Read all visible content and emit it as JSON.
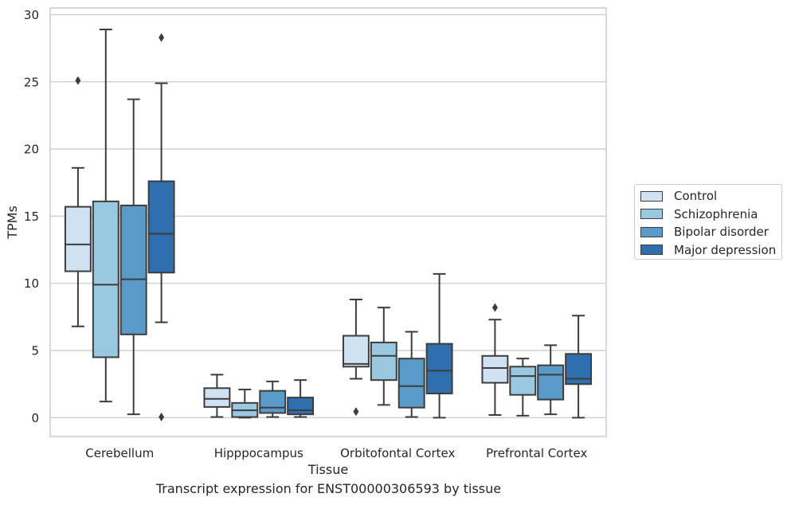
{
  "caption": "Transcript expression for ENST00000306593 by tissue",
  "chart_data": {
    "type": "box",
    "xlabel": "Tissue",
    "ylabel": "TPMs",
    "ylim": [
      -1.4,
      30.5
    ],
    "yticks": [
      0,
      5,
      10,
      15,
      20,
      25,
      30
    ],
    "grid": "horizontal",
    "legend_position": "right",
    "categories": [
      "Cerebellum",
      "Hipppocampus",
      "Orbitofontal Cortex",
      "Prefrontal Cortex"
    ],
    "series": [
      {
        "name": "Control",
        "color": "#d0e1f2",
        "boxes": [
          {
            "whisker_low": 6.8,
            "q1": 10.9,
            "median": 12.9,
            "q3": 15.7,
            "whisker_high": 18.6,
            "outliers": [
              25.1
            ]
          },
          {
            "whisker_low": 0.05,
            "q1": 0.8,
            "median": 1.4,
            "q3": 2.2,
            "whisker_high": 3.2,
            "outliers": []
          },
          {
            "whisker_low": 2.9,
            "q1": 3.8,
            "median": 4.0,
            "q3": 6.1,
            "whisker_high": 8.8,
            "outliers": [
              0.45
            ]
          },
          {
            "whisker_low": 0.2,
            "q1": 2.6,
            "median": 3.7,
            "q3": 4.6,
            "whisker_high": 7.3,
            "outliers": [
              8.2
            ]
          }
        ]
      },
      {
        "name": "Schizophrenia",
        "color": "#9ac8e0",
        "boxes": [
          {
            "whisker_low": 1.2,
            "q1": 4.5,
            "median": 9.9,
            "q3": 16.1,
            "whisker_high": 28.9,
            "outliers": []
          },
          {
            "whisker_low": 0.0,
            "q1": 0.05,
            "median": 0.55,
            "q3": 1.1,
            "whisker_high": 2.1,
            "outliers": []
          },
          {
            "whisker_low": 0.95,
            "q1": 2.8,
            "median": 4.6,
            "q3": 5.6,
            "whisker_high": 8.2,
            "outliers": []
          },
          {
            "whisker_low": 0.15,
            "q1": 1.7,
            "median": 3.1,
            "q3": 3.8,
            "whisker_high": 4.4,
            "outliers": []
          }
        ]
      },
      {
        "name": "Bipolar disorder",
        "color": "#5a9ac9",
        "boxes": [
          {
            "whisker_low": 0.25,
            "q1": 6.2,
            "median": 10.3,
            "q3": 15.8,
            "whisker_high": 23.7,
            "outliers": []
          },
          {
            "whisker_low": 0.05,
            "q1": 0.35,
            "median": 0.75,
            "q3": 2.0,
            "whisker_high": 2.7,
            "outliers": []
          },
          {
            "whisker_low": 0.05,
            "q1": 0.75,
            "median": 2.35,
            "q3": 4.4,
            "whisker_high": 6.4,
            "outliers": []
          },
          {
            "whisker_low": 0.25,
            "q1": 1.35,
            "median": 3.2,
            "q3": 3.9,
            "whisker_high": 5.4,
            "outliers": []
          }
        ]
      },
      {
        "name": "Major depression",
        "color": "#2f6fad",
        "boxes": [
          {
            "whisker_low": 7.1,
            "q1": 10.8,
            "median": 13.7,
            "q3": 17.6,
            "whisker_high": 24.9,
            "outliers": [
              28.3,
              0.05
            ]
          },
          {
            "whisker_low": 0.05,
            "q1": 0.25,
            "median": 0.55,
            "q3": 1.5,
            "whisker_high": 2.8,
            "outliers": []
          },
          {
            "whisker_low": 0.0,
            "q1": 1.8,
            "median": 3.5,
            "q3": 5.5,
            "whisker_high": 10.7,
            "outliers": []
          },
          {
            "whisker_low": 0.0,
            "q1": 2.5,
            "median": 2.9,
            "q3": 4.75,
            "whisker_high": 7.6,
            "outliers": []
          }
        ]
      }
    ]
  }
}
